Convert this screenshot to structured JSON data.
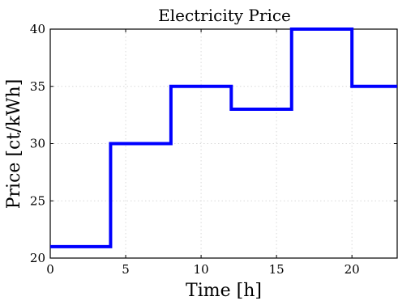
{
  "chart_data": {
    "type": "line",
    "step": "post",
    "title": "Electricity Price",
    "xlabel": "Time [h]",
    "ylabel": "Price [ct/kWh]",
    "xlim": [
      0,
      23
    ],
    "ylim": [
      20,
      40
    ],
    "xticks": [
      0,
      5,
      10,
      15,
      20
    ],
    "yticks": [
      20,
      25,
      30,
      35,
      40
    ],
    "grid": true,
    "series": [
      {
        "color": "#0000ff",
        "x": [
          0,
          4,
          8,
          12,
          16,
          20,
          23
        ],
        "y": [
          21,
          30,
          35,
          33,
          40,
          35,
          35
        ]
      }
    ]
  }
}
